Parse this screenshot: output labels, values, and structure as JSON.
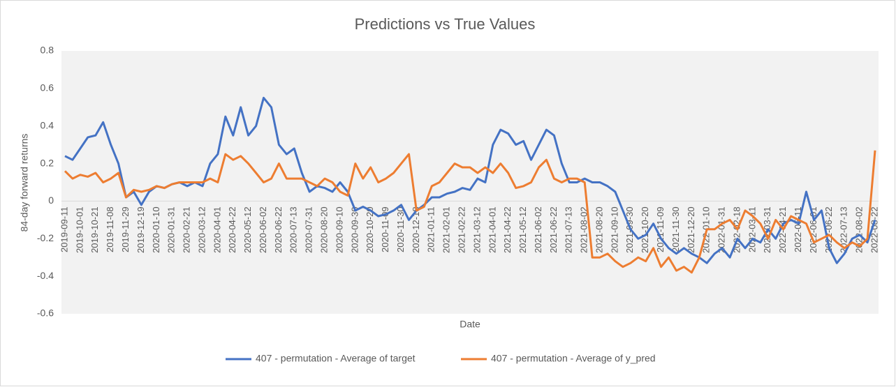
{
  "chart_data": {
    "type": "line",
    "title": "Predictions vs True Values",
    "x_label": "Date",
    "y_label": "84-day forward returns",
    "categories": [
      "2019-09-11",
      null,
      "2019-10-01",
      null,
      "2019-10-21",
      null,
      "2019-11-08",
      null,
      "2019-11-29",
      null,
      "2019-12-19",
      null,
      "2020-01-10",
      null,
      "2020-01-31",
      null,
      "2020-02-21",
      null,
      "2020-03-12",
      null,
      "2020-04-01",
      null,
      "2020-04-22",
      null,
      "2020-05-12",
      null,
      "2020-06-02",
      null,
      "2020-06-22",
      null,
      "2020-07-13",
      null,
      "2020-07-31",
      null,
      "2020-08-20",
      null,
      "2020-09-10",
      null,
      "2020-09-30",
      null,
      "2020-10-20",
      null,
      "2020-11-09",
      null,
      "2020-11-30",
      null,
      "2020-12-18",
      null,
      "2021-01-11",
      null,
      "2021-02-01",
      null,
      "2021-02-22",
      null,
      "2021-03-12",
      null,
      "2021-04-01",
      null,
      "2021-04-22",
      null,
      "2021-05-12",
      null,
      "2021-06-02",
      null,
      "2021-06-22",
      null,
      "2021-07-13",
      null,
      "2021-08-02",
      null,
      "2021-08-20",
      null,
      "2021-09-10",
      null,
      "2021-09-30",
      null,
      "2021-10-20",
      null,
      "2021-11-09",
      null,
      "2021-11-30",
      null,
      "2021-12-20",
      null,
      "2022-01-10",
      null,
      "2022-01-31",
      null,
      "2022-02-18",
      null,
      "2022-03-11",
      null,
      "2022-03-31",
      null,
      "2022-04-21",
      null,
      "2022-05-11",
      null,
      "2022-06-01",
      null,
      "2022-06-22",
      null,
      "2022-07-13",
      null,
      "2022-08-02",
      null,
      "2022-08-22"
    ],
    "series": [
      {
        "name": "407 - permutation - Average of target",
        "color": "#4472c4",
        "values": [
          0.24,
          0.22,
          0.28,
          0.34,
          0.35,
          0.42,
          0.3,
          0.2,
          0.02,
          0.05,
          -0.02,
          0.05,
          0.08,
          0.07,
          0.09,
          0.1,
          0.08,
          0.1,
          0.08,
          0.2,
          0.25,
          0.45,
          0.35,
          0.5,
          0.35,
          0.4,
          0.55,
          0.5,
          0.3,
          0.25,
          0.28,
          0.15,
          0.05,
          0.08,
          0.07,
          0.05,
          0.1,
          0.05,
          -0.05,
          -0.03,
          -0.05,
          -0.08,
          -0.07,
          -0.05,
          -0.02,
          -0.1,
          -0.05,
          -0.02,
          0.02,
          0.02,
          0.04,
          0.05,
          0.07,
          0.06,
          0.12,
          0.1,
          0.3,
          0.38,
          0.36,
          0.3,
          0.32,
          0.22,
          0.3,
          0.38,
          0.35,
          0.2,
          0.1,
          0.1,
          0.12,
          0.1,
          0.1,
          0.08,
          0.05,
          -0.05,
          -0.15,
          -0.2,
          -0.18,
          -0.12,
          -0.2,
          -0.25,
          -0.28,
          -0.25,
          -0.28,
          -0.3,
          -0.33,
          -0.28,
          -0.25,
          -0.3,
          -0.2,
          -0.25,
          -0.2,
          -0.22,
          -0.15,
          -0.2,
          -0.12,
          -0.1,
          -0.12,
          0.05,
          -0.1,
          -0.05,
          -0.25,
          -0.33,
          -0.28,
          -0.2,
          -0.18,
          -0.22,
          -0.1
        ]
      },
      {
        "name": "407 - permutation - Average of y_pred",
        "color": "#ed7d31",
        "values": [
          0.16,
          0.12,
          0.14,
          0.13,
          0.15,
          0.1,
          0.12,
          0.15,
          0.02,
          0.06,
          0.05,
          0.06,
          0.08,
          0.07,
          0.09,
          0.1,
          0.1,
          0.1,
          0.1,
          0.12,
          0.1,
          0.25,
          0.22,
          0.24,
          0.2,
          0.15,
          0.1,
          0.12,
          0.2,
          0.12,
          0.12,
          0.12,
          0.1,
          0.08,
          0.12,
          0.1,
          0.05,
          0.03,
          0.2,
          0.12,
          0.18,
          0.1,
          0.12,
          0.15,
          0.2,
          0.25,
          -0.05,
          -0.03,
          0.08,
          0.1,
          0.15,
          0.2,
          0.18,
          0.18,
          0.15,
          0.18,
          0.15,
          0.2,
          0.15,
          0.07,
          0.08,
          0.1,
          0.18,
          0.22,
          0.12,
          0.1,
          0.12,
          0.12,
          0.1,
          -0.3,
          -0.3,
          -0.28,
          -0.32,
          -0.35,
          -0.33,
          -0.3,
          -0.32,
          -0.25,
          -0.35,
          -0.3,
          -0.37,
          -0.35,
          -0.38,
          -0.3,
          -0.15,
          -0.15,
          -0.12,
          -0.1,
          -0.15,
          -0.05,
          -0.08,
          -0.12,
          -0.2,
          -0.1,
          -0.15,
          -0.08,
          -0.1,
          -0.12,
          -0.22,
          -0.2,
          -0.18,
          -0.22,
          -0.25,
          -0.22,
          -0.24,
          -0.2,
          0.27
        ]
      }
    ],
    "ylim": [
      -0.6,
      0.8
    ],
    "yticks": [
      -0.6,
      -0.4,
      -0.2,
      0,
      0.2,
      0.4,
      0.6,
      0.8
    ],
    "legend": "bottom",
    "plot_background": "#f2f2f2"
  }
}
